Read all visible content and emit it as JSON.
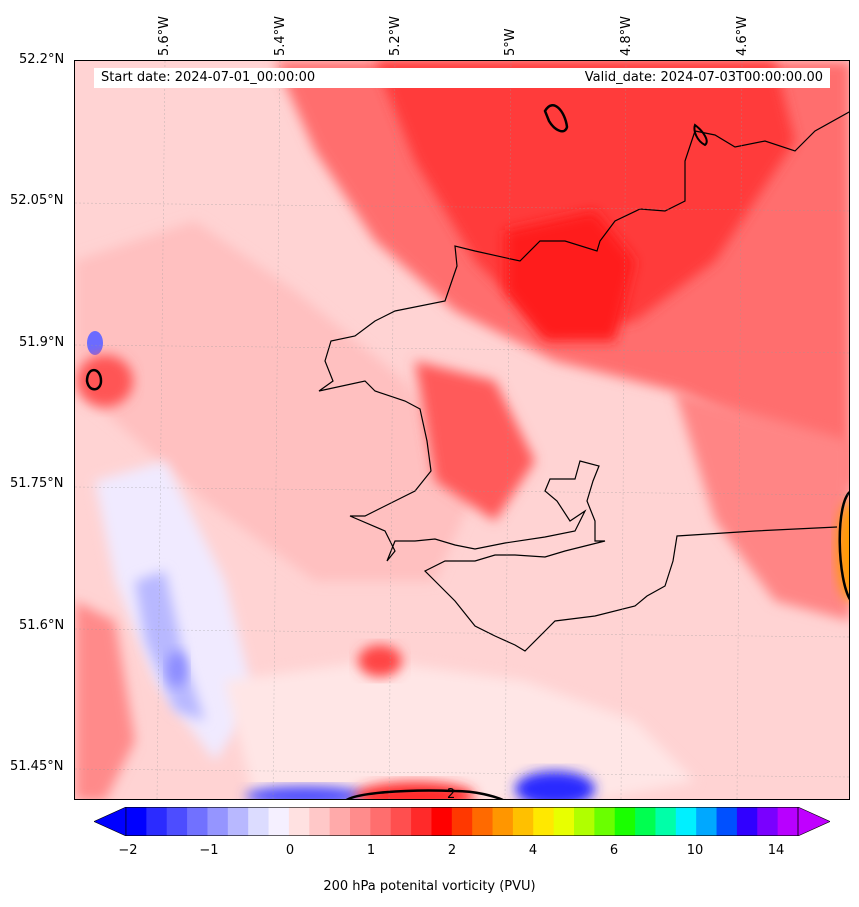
{
  "map": {
    "info": {
      "start_date": "Start date: 2024-07-01_00:00:00",
      "valid_date": "Valid_date: 2024-07-03T00:00:00.00"
    },
    "longitude_labels": [
      "5.6°W",
      "5.4°W",
      "5.2°W",
      "5°W",
      "4.8°W",
      "4.6°W"
    ],
    "latitude_labels": [
      "52.2°N",
      "52.05°N",
      "51.9°N",
      "51.75°N",
      "51.6°N",
      "51.45°N"
    ],
    "contour_label": "2",
    "gridlines": true
  },
  "colorbar": {
    "title": "200 hPa potenital vorticity (PVU)",
    "tick_labels": [
      "−2",
      "−1",
      "0",
      "1",
      "2",
      "4",
      "6",
      "10",
      "14"
    ],
    "colors": [
      "#0000ff",
      "#2b2bff",
      "#4d4dff",
      "#7171ff",
      "#9595ff",
      "#b8b8ff",
      "#dcdcff",
      "#f5f0ff",
      "#ffe1e1",
      "#ffc8c8",
      "#ffaaaa",
      "#ff8c8c",
      "#ff6e6e",
      "#ff4f4f",
      "#ff2a2a",
      "#ff0000",
      "#ff3800",
      "#ff6a00",
      "#ff9600",
      "#ffc000",
      "#ffe800",
      "#e8ff00",
      "#b0ff00",
      "#6aff00",
      "#1aff00",
      "#00ff50",
      "#00ffa8",
      "#00f0ff",
      "#00a8ff",
      "#0050ff",
      "#3000ff",
      "#7a00ff",
      "#b800ff"
    ],
    "extend_left_color": "#0000ff",
    "extend_right_color": "#c000ff"
  }
}
